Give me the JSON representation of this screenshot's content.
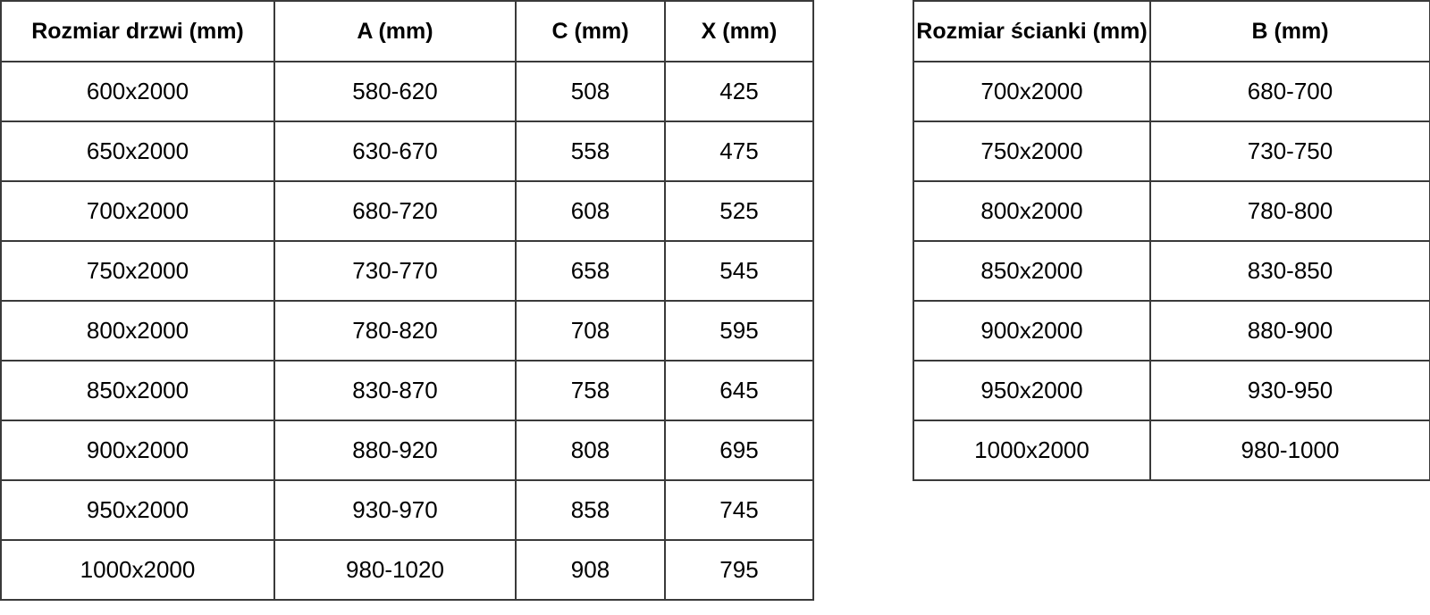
{
  "doors_table": {
    "headers": [
      "Rozmiar drzwi (mm)",
      "A (mm)",
      "C (mm)",
      "X (mm)"
    ],
    "rows": [
      [
        "600x2000",
        "580-620",
        "508",
        "425"
      ],
      [
        "650x2000",
        "630-670",
        "558",
        "475"
      ],
      [
        "700x2000",
        "680-720",
        "608",
        "525"
      ],
      [
        "750x2000",
        "730-770",
        "658",
        "545"
      ],
      [
        "800x2000",
        "780-820",
        "708",
        "595"
      ],
      [
        "850x2000",
        "830-870",
        "758",
        "645"
      ],
      [
        "900x2000",
        "880-920",
        "808",
        "695"
      ],
      [
        "950x2000",
        "930-970",
        "858",
        "745"
      ],
      [
        "1000x2000",
        "980-1020",
        "908",
        "795"
      ]
    ]
  },
  "walls_table": {
    "headers": [
      "Rozmiar ścianki (mm)",
      "B (mm)"
    ],
    "rows": [
      [
        "700x2000",
        "680-700"
      ],
      [
        "750x2000",
        "730-750"
      ],
      [
        "800x2000",
        "780-800"
      ],
      [
        "850x2000",
        "830-850"
      ],
      [
        "900x2000",
        "880-900"
      ],
      [
        "950x2000",
        "930-950"
      ],
      [
        "1000x2000",
        "980-1000"
      ]
    ]
  }
}
